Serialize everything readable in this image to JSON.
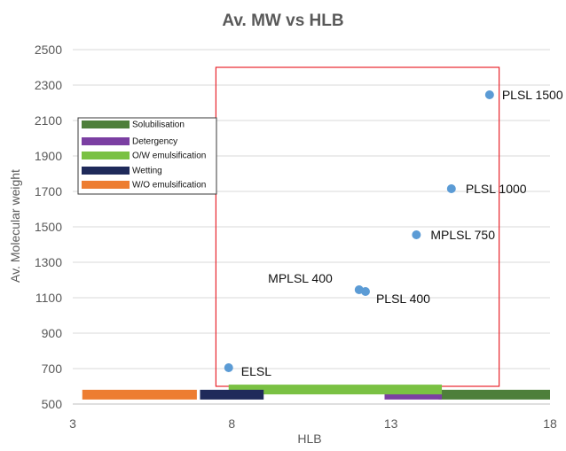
{
  "chart_data": {
    "type": "scatter",
    "title": "Av. MW vs HLB",
    "xlabel": "HLB",
    "ylabel": "Av. Molecular weight",
    "xlim": [
      3,
      18
    ],
    "ylim": [
      500,
      2500
    ],
    "xticks": [
      3,
      8,
      13,
      18
    ],
    "yticks": [
      500,
      700,
      900,
      1100,
      1300,
      1500,
      1700,
      1900,
      2100,
      2300,
      2500
    ],
    "grid": "horizontal",
    "marker_color": "#5b9bd5",
    "points": [
      {
        "label": "PLSL 1500",
        "x": 16.1,
        "y": 2245
      },
      {
        "label": "PLSL 1000",
        "x": 14.9,
        "y": 1715
      },
      {
        "label": "MPLSL 750",
        "x": 13.8,
        "y": 1455
      },
      {
        "label": "MPLSL 400",
        "x": 12.0,
        "y": 1145
      },
      {
        "label": "PLSL 400",
        "x": 12.2,
        "y": 1135
      },
      {
        "label": "ELSL",
        "x": 7.9,
        "y": 705
      }
    ],
    "ranges": [
      {
        "name": "Solubilisation",
        "color": "#4e7f3a",
        "x": [
          14.5,
          18.0
        ],
        "y": 553
      },
      {
        "name": "Detergency",
        "color": "#7b3fa2",
        "x": [
          12.8,
          14.6
        ],
        "y": 553
      },
      {
        "name": "O/W emulsification",
        "color": "#7ac143",
        "x": [
          7.9,
          14.6
        ],
        "y": 582
      },
      {
        "name": "Wetting",
        "color": "#1f2a5a",
        "x": [
          7.0,
          9.0
        ],
        "y": 553
      },
      {
        "name": "W/O emulsification",
        "color": "#ed7d31",
        "x": [
          3.3,
          6.9
        ],
        "y": 553
      }
    ],
    "highlight_box": {
      "x": [
        7.5,
        16.4
      ],
      "y": [
        600,
        2400
      ],
      "color": "#e8252d"
    },
    "legend_position": "left"
  }
}
